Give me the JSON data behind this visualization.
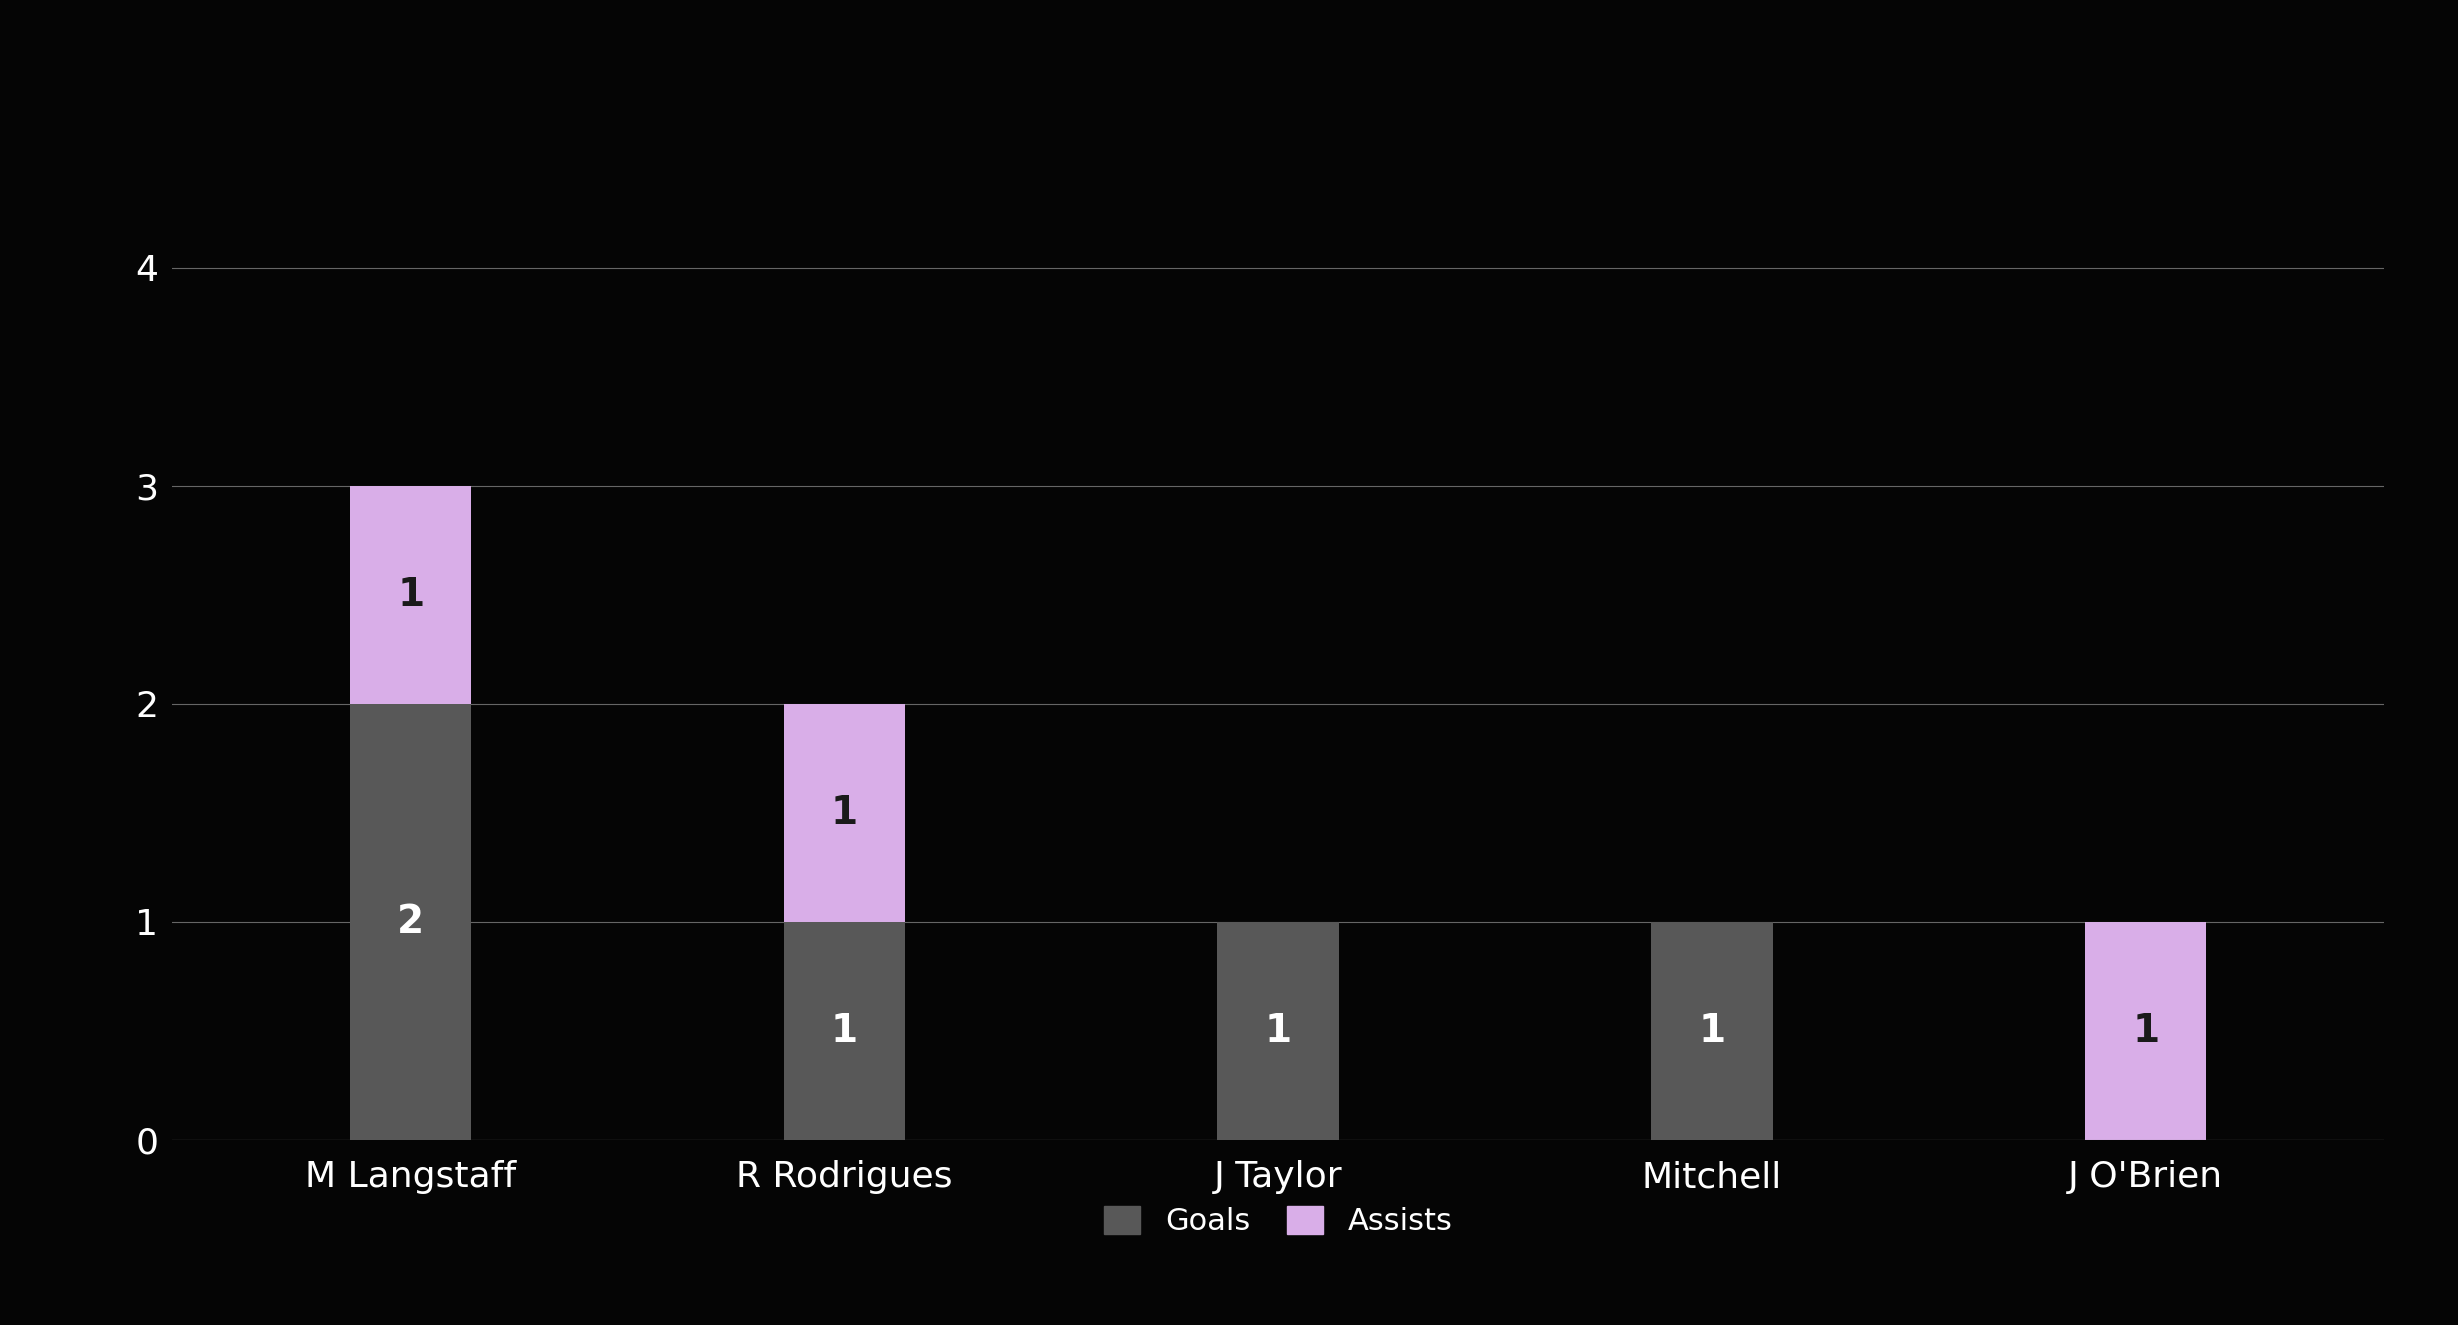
{
  "players": [
    "M Langstaff",
    "R Rodrigues",
    "J Taylor",
    "Mitchell",
    "J O'Brien"
  ],
  "goals": [
    2,
    1,
    1,
    1,
    0
  ],
  "assists": [
    1,
    1,
    0,
    0,
    1
  ],
  "goals_color": "#585858",
  "assists_color": "#d9aee8",
  "background_color": "#050505",
  "text_color": "#ffffff",
  "grid_color": "#666666",
  "yticks": [
    0,
    1,
    2,
    3,
    4
  ],
  "ylim": [
    0,
    4.5
  ],
  "bar_width": 0.28,
  "legend_goals_label": "Goals",
  "legend_assists_label": "Assists",
  "xlabel_fontsize": 26,
  "tick_fontsize": 26,
  "legend_fontsize": 22,
  "value_fontsize": 28
}
